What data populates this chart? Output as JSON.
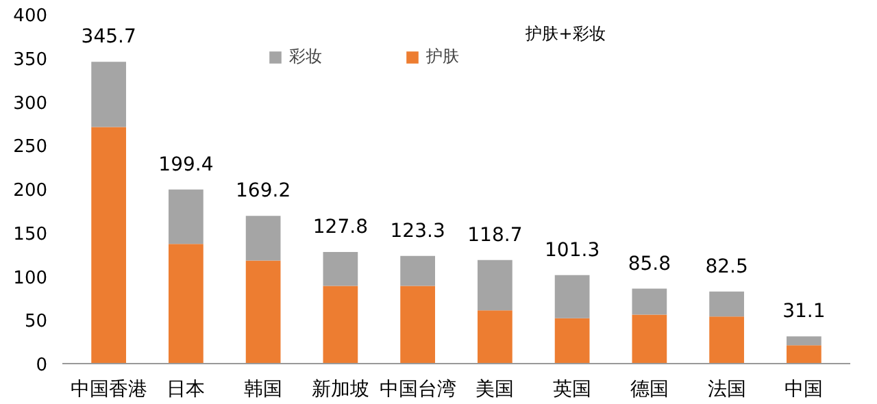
{
  "chart_data": {
    "type": "bar",
    "stacked": true,
    "categories": [
      "中国香港",
      "日本",
      "韩国",
      "新加坡",
      "中国台湾",
      "美国",
      "英国",
      "德国",
      "法国",
      "中国"
    ],
    "series": [
      {
        "name": "护肤",
        "color": "#ed7d31",
        "values": [
          271,
          137,
          118,
          89,
          89,
          61,
          52,
          56,
          54,
          21
        ]
      },
      {
        "name": "彩妆",
        "color": "#a5a5a5",
        "values": [
          74.7,
          62.4,
          51.2,
          38.8,
          34.3,
          57.7,
          49.3,
          29.8,
          28.5,
          10.1
        ]
      }
    ],
    "totals": [
      "345.7",
      "199.4",
      "169.2",
      "127.8",
      "123.3",
      "118.7",
      "101.3",
      "85.8",
      "82.5",
      "31.1"
    ],
    "annotations": [
      "护肤+彩妆"
    ],
    "ylim": [
      0,
      400
    ],
    "yticks": [
      0,
      50,
      100,
      150,
      200,
      250,
      300,
      350,
      400
    ],
    "grid": false,
    "legend": "top"
  }
}
